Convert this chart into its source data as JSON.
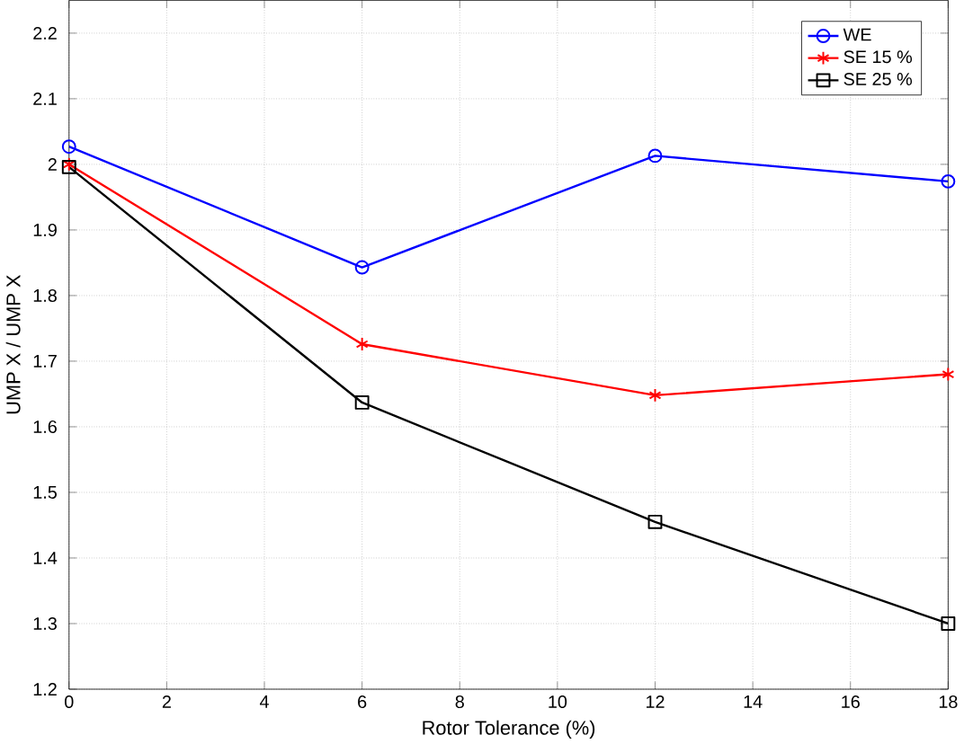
{
  "chart_data": {
    "type": "line",
    "xlabel": "Rotor Tolerance (%)",
    "ylabel": "UMP X / UMP X",
    "x": [
      0,
      6,
      12,
      18
    ],
    "series": [
      {
        "name": "WE",
        "color": "#0000ff",
        "marker": "circle",
        "values": [
          2.027,
          1.843,
          2.013,
          1.974
        ]
      },
      {
        "name": "SE 15 %",
        "color": "#ff0000",
        "marker": "cross",
        "values": [
          2.0,
          1.726,
          1.648,
          1.68
        ]
      },
      {
        "name": "SE 25 %",
        "color": "#000000",
        "marker": "square",
        "values": [
          1.996,
          1.637,
          1.455,
          1.3
        ]
      }
    ],
    "xlim": [
      0,
      18
    ],
    "ylim": [
      1.2,
      2.25
    ],
    "xticks": [
      0,
      2,
      4,
      6,
      8,
      10,
      12,
      14,
      16,
      18
    ],
    "yticks": [
      1.2,
      1.3,
      1.4,
      1.5,
      1.6,
      1.7,
      1.8,
      1.9,
      2,
      2.1,
      2.2
    ],
    "grid": true,
    "legend": "top right",
    "line_style": "solid"
  }
}
